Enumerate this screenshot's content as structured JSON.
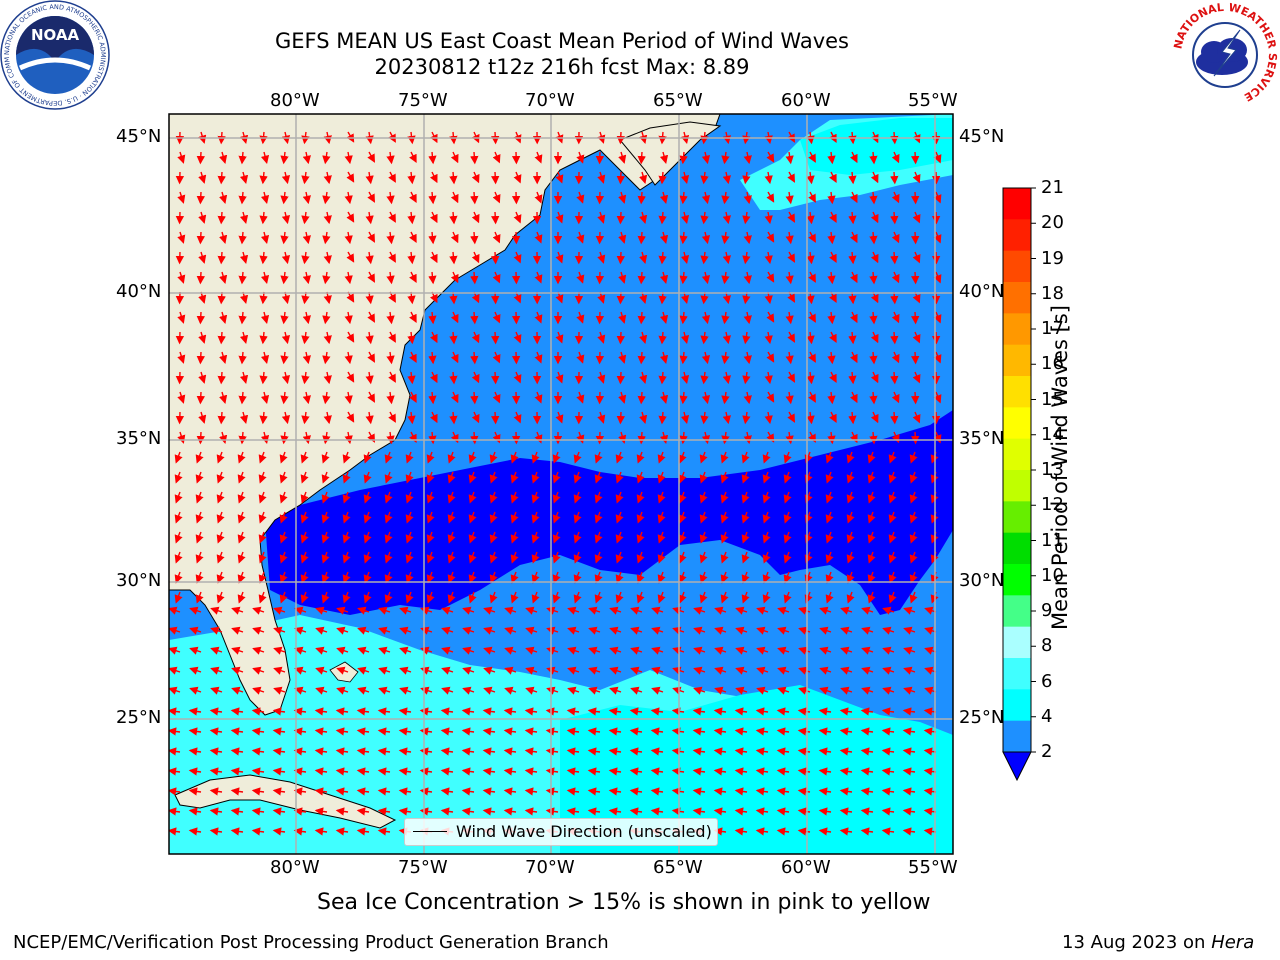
{
  "title": {
    "line1": "GEFS MEAN US East Coast Mean Period of Wind Waves",
    "line2": "20230812 t12z 216h fcst   Max: 8.89"
  },
  "map": {
    "lon_ticks": [
      "80°W",
      "75°W",
      "70°W",
      "65°W",
      "60°W",
      "55°W"
    ],
    "lat_ticks": [
      "45°N",
      "40°N",
      "35°N",
      "30°N",
      "25°N"
    ],
    "colors": {
      "land": "#efedda",
      "blue_dark": "#0000ff",
      "blue_mid": "#1e90ff",
      "cyan": "#00ffff",
      "cyan_light": "#40ffff",
      "arrow": "#ff0000",
      "grid": "#b0b0b0"
    }
  },
  "legend": {
    "label": "Wind Wave Direction (unscaled)"
  },
  "colorbar": {
    "ticks": [
      "21",
      "20",
      "19",
      "18",
      "17",
      "16",
      "15",
      "14",
      "13",
      "12",
      "11",
      "10",
      "9",
      "8",
      "6",
      "4",
      "2"
    ],
    "colors": [
      "#ff0000",
      "#ff2000",
      "#ff4a00",
      "#ff7000",
      "#ff9800",
      "#ffb800",
      "#ffe000",
      "#ffff00",
      "#e0ff00",
      "#c0ff00",
      "#66ee00",
      "#00dd00",
      "#00ff00",
      "#44ff88",
      "#aaffff",
      "#40ffff",
      "#00ffff",
      "#1e90ff"
    ],
    "extend_color": "#0000ff",
    "label": "Mean Period of Wind Waves [s]"
  },
  "note": "Sea Ice Concentration > 15% is shown in pink to yellow",
  "footer": {
    "left": "NCEP/EMC/Verification Post Processing Product Generation Branch",
    "date": "13 Aug 2023 on",
    "machine": "Hera"
  },
  "logos": {
    "noara_text": "NOAA",
    "noaa_ring": "NATIONAL OCEANIC AND ATMOSPHERIC ADMINISTRATION · U.S. DEPARTMENT OF COMMERCE",
    "nws_ring": "NATIONAL WEATHER SERVICE"
  }
}
